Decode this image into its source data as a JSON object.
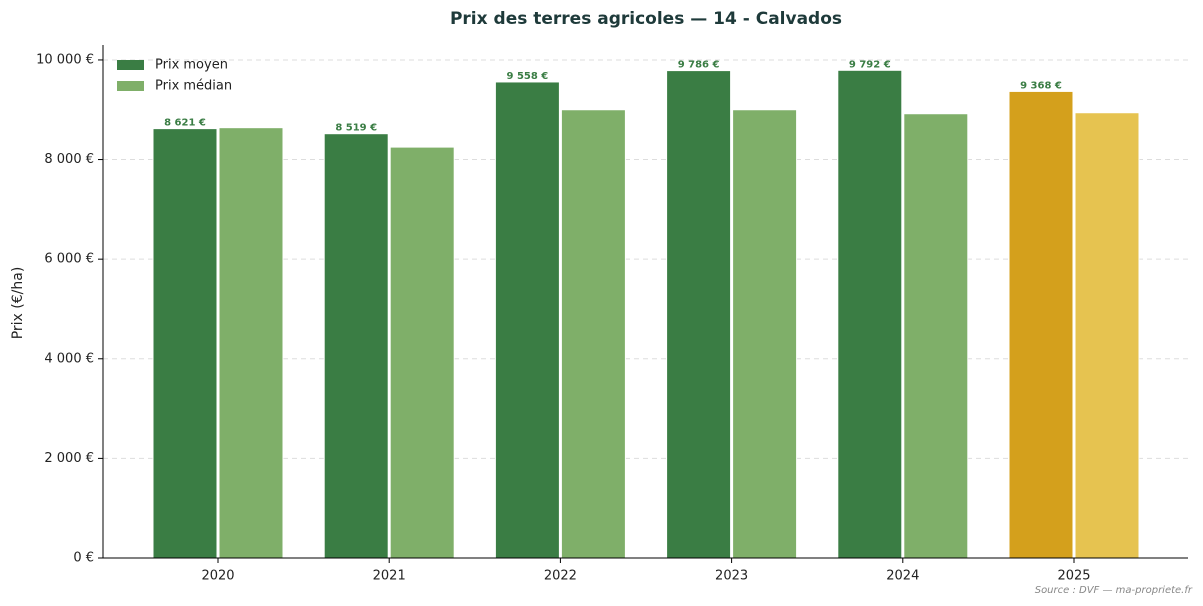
{
  "chart_data": {
    "type": "bar",
    "title": "Prix des terres agricoles — 14 - Calvados",
    "y_label": "Prix (€/ha)",
    "source": "Source : DVF — ma-propriete.fr",
    "categories": [
      "2020",
      "2021",
      "2022",
      "2023",
      "2024",
      "2025"
    ],
    "series": [
      {
        "name": "Prix moyen",
        "color": "#3a7d44",
        "colors": [
          "#3a7d44",
          "#3a7d44",
          "#3a7d44",
          "#3a7d44",
          "#3a7d44",
          "#d4a01c"
        ],
        "values": [
          8621,
          8519,
          9558,
          9786,
          9792,
          9368
        ],
        "value_labels": [
          "8 621 €",
          "8 519 €",
          "9 558 €",
          "9 786 €",
          "9 792 €",
          "9 368 €"
        ]
      },
      {
        "name": "Prix médian",
        "color": "#7faf69",
        "colors": [
          "#7faf69",
          "#7faf69",
          "#7faf69",
          "#7faf69",
          "#7faf69",
          "#e6c350"
        ],
        "values": [
          8640,
          8250,
          9000,
          9000,
          8920,
          8940
        ]
      }
    ],
    "ylim": [
      0,
      10300
    ],
    "yticks": [
      {
        "value": 0,
        "label": "0 €"
      },
      {
        "value": 2000,
        "label": "2 000 €"
      },
      {
        "value": 4000,
        "label": "4 000 €"
      },
      {
        "value": 6000,
        "label": "6 000 €"
      },
      {
        "value": 8000,
        "label": "8 000 €"
      },
      {
        "value": 10000,
        "label": "10 000 €"
      }
    ],
    "grid": true,
    "legend": "upper-left"
  }
}
